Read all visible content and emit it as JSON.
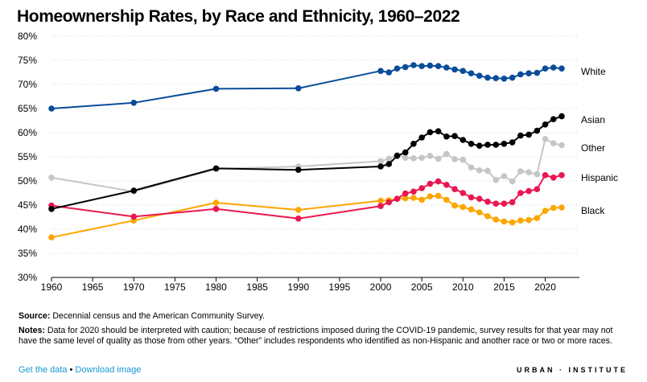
{
  "title": "Homeownership Rates, by Race and Ethnicity, 1960–2022",
  "footer": {
    "source_label": "Source:",
    "source_text": "Decennial census and the American Community Survey.",
    "notes_label": "Notes:",
    "notes_text": "Data for 2020 should be interpreted with caution; because of restrictions imposed during the COVID-19 pandemic, survey results for that year may not have the same level of quality as those from other years. “Other” includes respondents who identified as non-Hispanic and another race or two or more races.",
    "link_data": "Get the data",
    "separator": "•",
    "link_image": "Download image",
    "brand": "URBAN · INSTITUTE"
  },
  "chart_data": {
    "type": "line",
    "title": "Homeownership Rates, by Race and Ethnicity, 1960–2022",
    "xlim": [
      1960,
      2022
    ],
    "ylim": [
      30,
      80
    ],
    "y_unit": "%",
    "x_ticks": [
      1960,
      1965,
      1970,
      1975,
      1980,
      1985,
      1990,
      1995,
      2000,
      2005,
      2010,
      2015,
      2020
    ],
    "y_ticks": [
      30,
      35,
      40,
      45,
      50,
      55,
      60,
      65,
      70,
      75,
      80
    ],
    "y_tick_labels": [
      "30%",
      "35%",
      "40%",
      "45%",
      "50%",
      "55%",
      "60%",
      "65%",
      "70%",
      "75%",
      "80%"
    ],
    "grid": "horizontal dotted",
    "legend": "direct labels at right end of lines",
    "series": [
      {
        "name": "White",
        "color": "#0a4c9a",
        "x": [
          1960,
          1970,
          1980,
          1990,
          2000,
          2001,
          2002,
          2003,
          2004,
          2005,
          2006,
          2007,
          2008,
          2009,
          2010,
          2011,
          2012,
          2013,
          2014,
          2015,
          2016,
          2017,
          2018,
          2019,
          2020,
          2021,
          2022
        ],
        "y": [
          65.0,
          66.2,
          69.1,
          69.2,
          72.8,
          72.5,
          73.3,
          73.6,
          74.0,
          73.8,
          73.9,
          73.8,
          73.5,
          73.1,
          72.8,
          72.3,
          71.8,
          71.4,
          71.3,
          71.2,
          71.4,
          72.1,
          72.3,
          72.4,
          73.3,
          73.5,
          73.3
        ]
      },
      {
        "name": "Asian",
        "color": "#000000",
        "x": [
          1960,
          1970,
          1980,
          1990,
          2000,
          2001,
          2002,
          2003,
          2004,
          2005,
          2006,
          2007,
          2008,
          2009,
          2010,
          2011,
          2012,
          2013,
          2014,
          2015,
          2016,
          2017,
          2018,
          2019,
          2020,
          2021,
          2022
        ],
        "y": [
          44.2,
          48.0,
          52.6,
          52.3,
          53.0,
          53.5,
          55.2,
          55.9,
          57.7,
          59.0,
          60.1,
          60.3,
          59.2,
          59.3,
          58.5,
          57.7,
          57.3,
          57.5,
          57.5,
          57.7,
          58.0,
          59.4,
          59.6,
          60.4,
          61.7,
          62.8,
          63.4
        ]
      },
      {
        "name": "Other",
        "color": "#c6c6c6",
        "x": [
          1960,
          1970,
          1980,
          1990,
          2000,
          2001,
          2002,
          2003,
          2004,
          2005,
          2006,
          2007,
          2008,
          2009,
          2010,
          2011,
          2012,
          2013,
          2014,
          2015,
          2016,
          2017,
          2018,
          2019,
          2020,
          2021,
          2022
        ],
        "y": [
          50.7,
          47.8,
          52.5,
          53.0,
          54.1,
          54.6,
          55.4,
          54.8,
          54.7,
          54.8,
          55.2,
          54.6,
          55.6,
          54.5,
          54.4,
          52.8,
          52.2,
          52.1,
          50.2,
          51.0,
          49.9,
          52.0,
          51.8,
          51.4,
          58.7,
          57.8,
          57.4
        ]
      },
      {
        "name": "Hispanic",
        "color": "#e9174f",
        "x": [
          1960,
          1970,
          1980,
          1990,
          2000,
          2001,
          2002,
          2003,
          2004,
          2005,
          2006,
          2007,
          2008,
          2009,
          2010,
          2011,
          2012,
          2013,
          2014,
          2015,
          2016,
          2017,
          2018,
          2019,
          2020,
          2021,
          2022
        ],
        "y": [
          44.9,
          42.6,
          44.2,
          42.2,
          44.8,
          45.6,
          46.3,
          47.4,
          47.8,
          48.5,
          49.4,
          49.9,
          49.2,
          48.3,
          47.5,
          46.6,
          46.3,
          45.7,
          45.3,
          45.3,
          45.6,
          47.5,
          47.9,
          48.3,
          51.2,
          50.7,
          51.2
        ]
      },
      {
        "name": "Black",
        "color": "#fca600",
        "x": [
          1960,
          1970,
          1980,
          1990,
          2000,
          2001,
          2002,
          2003,
          2004,
          2005,
          2006,
          2007,
          2008,
          2009,
          2010,
          2011,
          2012,
          2013,
          2014,
          2015,
          2016,
          2017,
          2018,
          2019,
          2020,
          2021,
          2022
        ],
        "y": [
          38.3,
          41.8,
          45.5,
          44.0,
          45.9,
          46.0,
          46.3,
          46.4,
          46.5,
          46.1,
          46.8,
          46.9,
          46.1,
          44.9,
          44.6,
          44.1,
          43.5,
          42.7,
          42.0,
          41.6,
          41.4,
          41.8,
          41.9,
          42.3,
          43.8,
          44.4,
          44.5
        ]
      }
    ]
  }
}
